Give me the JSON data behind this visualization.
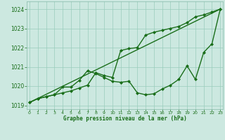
{
  "title": "Graphe pression niveau de la mer (hPa)",
  "xlabel_ticks": [
    0,
    1,
    2,
    3,
    4,
    5,
    6,
    7,
    8,
    9,
    10,
    11,
    12,
    13,
    14,
    15,
    16,
    17,
    18,
    19,
    20,
    21,
    22,
    23
  ],
  "ylim": [
    1018.8,
    1024.4
  ],
  "yticks": [
    1019,
    1020,
    1021,
    1022,
    1023,
    1024
  ],
  "xlim": [
    -0.3,
    23.3
  ],
  "background_color": "#cce8e0",
  "grid_color": "#99ccbb",
  "line_color": "#1a6e1a",
  "series": [
    {
      "x": [
        0,
        23
      ],
      "y": [
        1019.15,
        1024.0
      ],
      "marker": null,
      "linestyle": "-",
      "linewidth": 1.0
    },
    {
      "x": [
        0,
        1,
        2,
        3,
        4,
        5,
        6,
        7,
        8,
        9,
        10,
        11,
        12,
        13,
        14,
        15,
        16,
        17,
        18,
        19,
        20,
        21,
        22,
        23
      ],
      "y": [
        1019.15,
        1019.35,
        1019.45,
        1019.55,
        1019.65,
        1019.75,
        1019.9,
        1020.05,
        1020.7,
        1020.55,
        1020.45,
        1021.85,
        1021.95,
        1022.0,
        1022.65,
        1022.8,
        1022.9,
        1023.0,
        1023.1,
        1023.3,
        1023.6,
        1023.7,
        1023.85,
        1024.0
      ],
      "marker": "D",
      "linestyle": "-",
      "linewidth": 1.0
    },
    {
      "x": [
        0,
        1,
        2,
        3,
        4,
        5,
        6,
        7,
        8,
        9,
        10,
        11,
        12,
        13,
        14,
        15,
        16,
        17,
        18,
        19,
        20,
        21,
        22,
        23
      ],
      "y": [
        1019.15,
        1019.35,
        1019.45,
        1019.55,
        1019.95,
        1019.95,
        1020.3,
        1020.8,
        1020.65,
        1020.45,
        1020.25,
        1020.2,
        1020.25,
        1019.65,
        1019.55,
        1019.6,
        1019.85,
        1020.05,
        1020.35,
        1021.05,
        1020.35,
        1021.75,
        1022.2,
        1024.0
      ],
      "marker": "D",
      "linestyle": "-",
      "linewidth": 1.0
    }
  ]
}
